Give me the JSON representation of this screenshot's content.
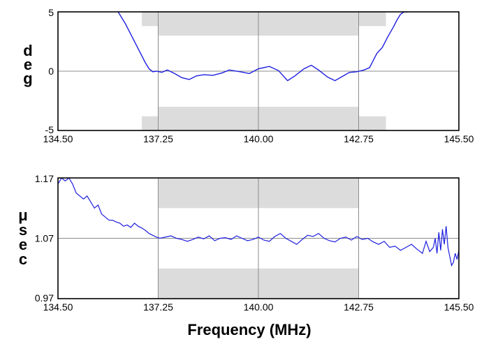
{
  "chart_data": [
    {
      "type": "line",
      "ylabel": "deg",
      "xlabel": "",
      "x_ticks": [
        "134.50",
        "137.25",
        "140.00",
        "142.75",
        "145.50"
      ],
      "y_ticks": [
        "5",
        "0",
        "-5"
      ],
      "xlim": [
        134.5,
        145.5
      ],
      "ylim": [
        -5,
        5
      ],
      "grid": true,
      "series_color": "#1f1fe0",
      "mask_color": "#dcdcdc",
      "masks": [
        {
          "x0": 136.8,
          "x1": 137.25,
          "y0": 3.8,
          "y1": 5
        },
        {
          "x0": 137.25,
          "x1": 142.75,
          "y0": 3.0,
          "y1": 5
        },
        {
          "x0": 142.75,
          "x1": 143.5,
          "y0": 3.8,
          "y1": 5
        },
        {
          "x0": 136.8,
          "x1": 137.25,
          "y0": -5,
          "y1": -3.8
        },
        {
          "x0": 137.25,
          "x1": 142.75,
          "y0": -5,
          "y1": -3.0
        },
        {
          "x0": 142.75,
          "x1": 143.5,
          "y0": -5,
          "y1": -3.8
        }
      ],
      "series": [
        {
          "x": [
            136.15,
            136.35,
            136.55,
            136.75,
            136.9,
            137.0,
            137.1,
            137.2,
            137.35,
            137.5,
            137.7,
            137.9,
            138.1,
            138.3,
            138.5,
            138.75,
            139.0,
            139.2,
            139.5,
            139.75,
            140.0,
            140.3,
            140.55,
            140.8,
            141.0,
            141.25,
            141.45,
            141.65,
            141.9,
            142.1,
            142.3,
            142.5,
            142.7,
            142.9,
            143.05,
            143.15,
            143.25,
            143.4,
            143.55,
            143.7,
            143.8,
            143.9,
            144.0,
            144.1
          ],
          "y": [
            5.0,
            4.0,
            2.8,
            1.6,
            0.7,
            0.2,
            -0.05,
            0.0,
            -0.1,
            0.1,
            -0.2,
            -0.55,
            -0.7,
            -0.4,
            -0.3,
            -0.35,
            -0.15,
            0.1,
            -0.05,
            -0.2,
            0.2,
            0.4,
            0.05,
            -0.8,
            -0.4,
            0.2,
            0.5,
            0.1,
            -0.5,
            -0.8,
            -0.45,
            -0.1,
            -0.05,
            0.1,
            0.3,
            0.9,
            1.5,
            2.0,
            2.9,
            3.7,
            4.3,
            4.8,
            5.0,
            5.0
          ]
        }
      ]
    },
    {
      "type": "line",
      "ylabel": "μsec",
      "xlabel": "Frequency (MHz)",
      "x_ticks": [
        "134.50",
        "137.25",
        "140.00",
        "142.75",
        "145.50"
      ],
      "y_ticks": [
        "1.17",
        "1.07",
        "0.97"
      ],
      "xlim": [
        134.5,
        145.5
      ],
      "ylim": [
        0.97,
        1.17
      ],
      "grid": true,
      "series_color": "#1f1fe0",
      "mask_color": "#dcdcdc",
      "masks": [
        {
          "x0": 137.25,
          "x1": 142.75,
          "y0": 1.12,
          "y1": 1.17
        },
        {
          "x0": 137.25,
          "x1": 142.75,
          "y0": 0.97,
          "y1": 1.02
        }
      ],
      "series": [
        {
          "x": [
            134.5,
            134.6,
            134.7,
            134.8,
            134.9,
            135.0,
            135.1,
            135.2,
            135.3,
            135.4,
            135.5,
            135.6,
            135.7,
            135.8,
            135.9,
            136.0,
            136.1,
            136.2,
            136.3,
            136.4,
            136.5,
            136.6,
            136.7,
            136.8,
            136.9,
            137.0,
            137.1,
            137.2,
            137.3,
            137.45,
            137.6,
            137.75,
            137.9,
            138.05,
            138.2,
            138.35,
            138.5,
            138.65,
            138.8,
            138.95,
            139.1,
            139.25,
            139.4,
            139.55,
            139.7,
            139.85,
            140.0,
            140.15,
            140.3,
            140.45,
            140.6,
            140.75,
            140.9,
            141.05,
            141.2,
            141.35,
            141.5,
            141.65,
            141.8,
            141.95,
            142.1,
            142.25,
            142.4,
            142.55,
            142.7,
            142.85,
            143.0,
            143.15,
            143.3,
            143.45,
            143.6,
            143.75,
            143.9,
            144.05,
            144.2,
            144.35,
            144.5,
            144.6,
            144.7,
            144.8,
            144.85,
            144.9,
            144.95,
            145.0,
            145.05,
            145.1,
            145.15,
            145.2,
            145.25,
            145.3,
            145.35,
            145.4,
            145.45,
            145.5
          ],
          "y": [
            1.16,
            1.17,
            1.165,
            1.17,
            1.16,
            1.145,
            1.14,
            1.135,
            1.14,
            1.13,
            1.12,
            1.125,
            1.11,
            1.105,
            1.1,
            1.1,
            1.097,
            1.095,
            1.09,
            1.092,
            1.088,
            1.095,
            1.09,
            1.087,
            1.083,
            1.078,
            1.075,
            1.072,
            1.07,
            1.072,
            1.074,
            1.07,
            1.068,
            1.065,
            1.068,
            1.072,
            1.069,
            1.074,
            1.066,
            1.07,
            1.071,
            1.068,
            1.074,
            1.07,
            1.066,
            1.068,
            1.072,
            1.067,
            1.065,
            1.073,
            1.078,
            1.07,
            1.065,
            1.06,
            1.068,
            1.075,
            1.073,
            1.078,
            1.07,
            1.066,
            1.064,
            1.07,
            1.072,
            1.067,
            1.073,
            1.068,
            1.07,
            1.064,
            1.06,
            1.065,
            1.055,
            1.057,
            1.05,
            1.055,
            1.06,
            1.052,
            1.045,
            1.065,
            1.048,
            1.055,
            1.07,
            1.045,
            1.08,
            1.05,
            1.085,
            1.06,
            1.09,
            1.055,
            1.04,
            1.025,
            1.03,
            1.045,
            1.035,
            1.05
          ]
        }
      ]
    }
  ]
}
